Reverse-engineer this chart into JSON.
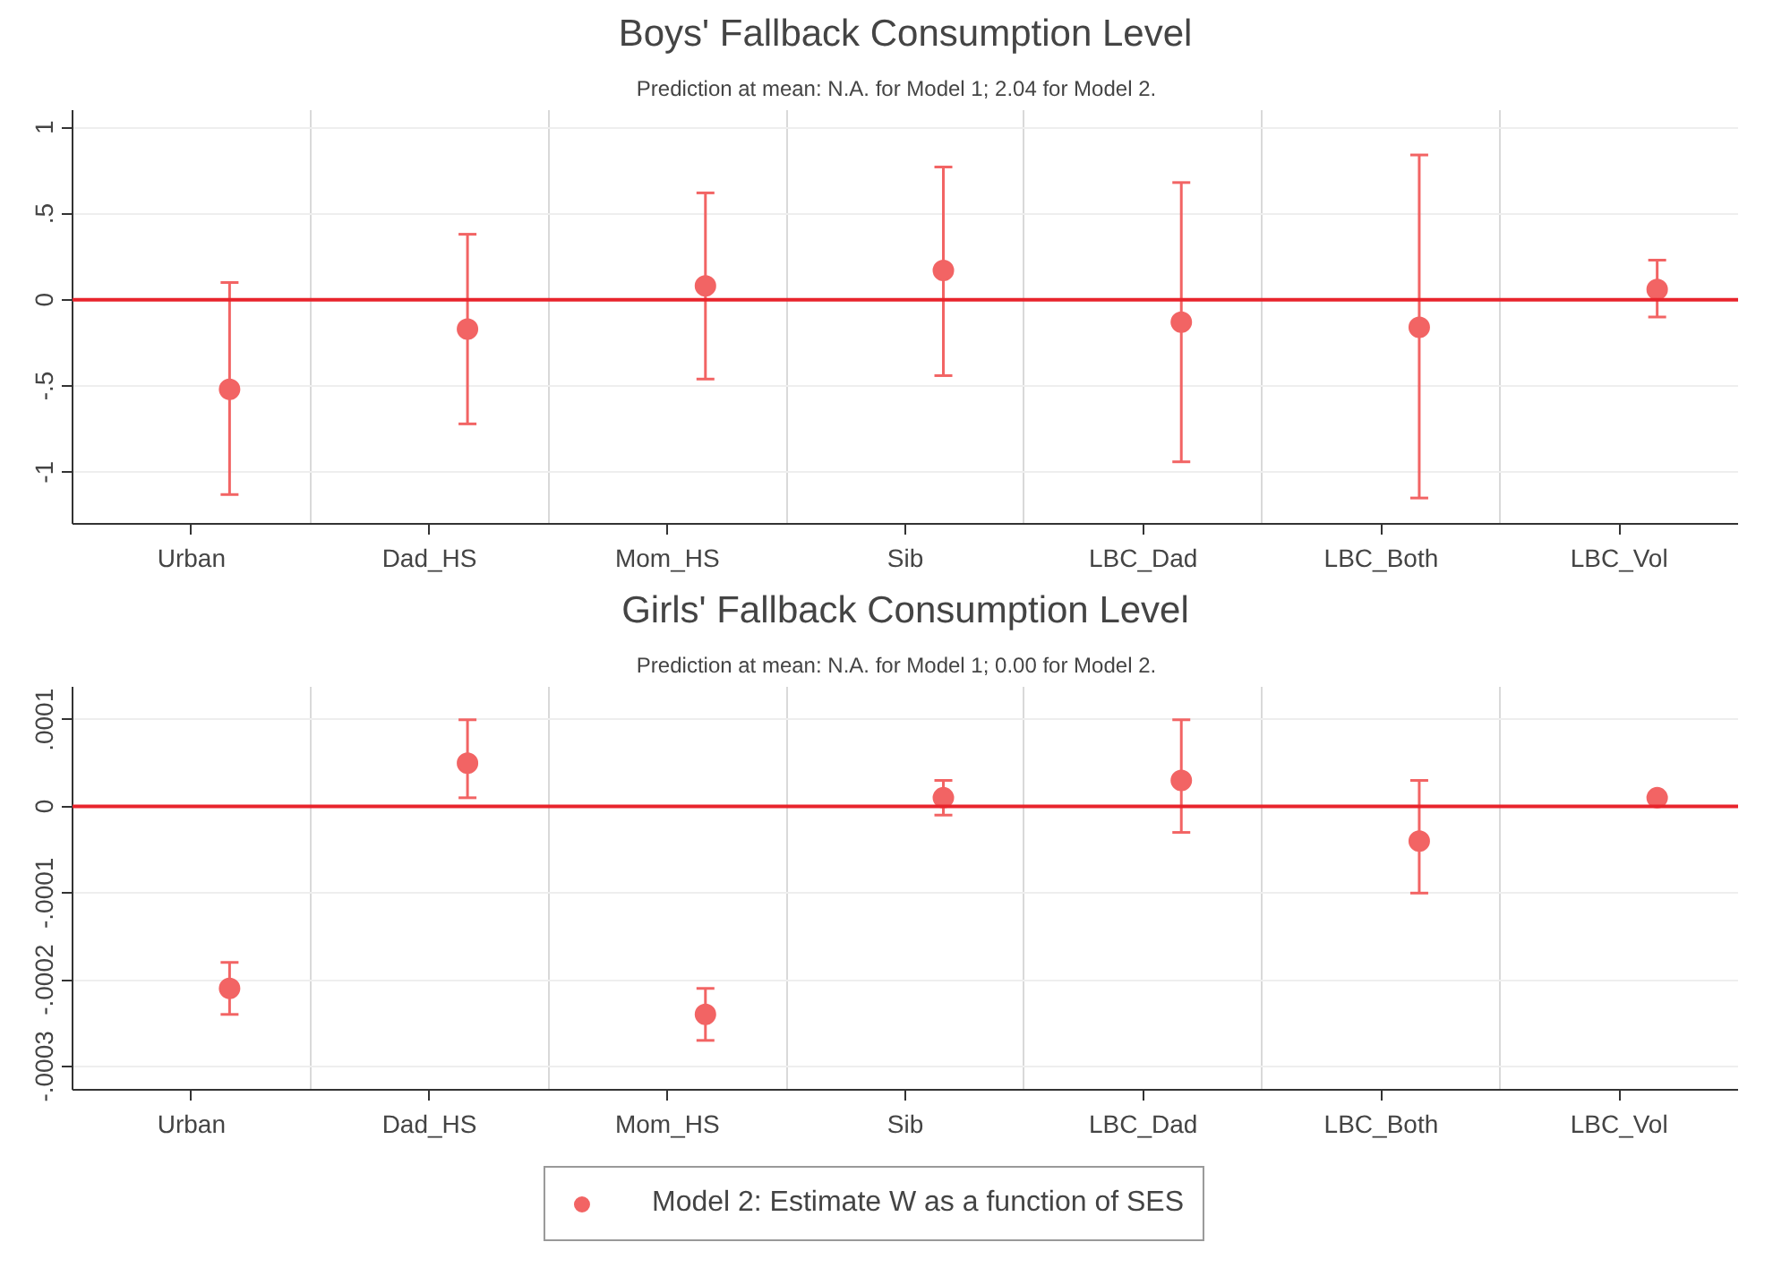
{
  "chart_data": [
    {
      "type": "scatter",
      "title": "Boys' Fallback Consumption Level",
      "subtitle": "Prediction at mean:  N.A.  for Model 1;  2.04 for Model 2.",
      "categories": [
        "Urban",
        "Dad_HS",
        "Mom_HS",
        "Sib",
        "LBC_Dad",
        "LBC_Both",
        "LBC_Vol"
      ],
      "series": [
        {
          "color": "#f26464",
          "values": [
            -0.52,
            -0.17,
            0.08,
            0.17,
            -0.13,
            -0.16,
            0.06
          ],
          "errors": [
            [
              -1.13,
              0.1
            ],
            [
              -0.72,
              0.38
            ],
            [
              -0.46,
              0.62
            ],
            [
              -0.44,
              0.77
            ],
            [
              -0.94,
              0.68
            ],
            [
              -1.15,
              0.84
            ],
            [
              -0.1,
              0.23
            ]
          ]
        }
      ],
      "ylim": [
        -1.3,
        1.1
      ],
      "yticks": [
        {
          "value": -1,
          "label": "-1"
        },
        {
          "value": -0.5,
          "label": "-.5"
        },
        0,
        {
          "value": 0.5,
          "label": ".5"
        },
        1
      ],
      "ref_lines": [
        {
          "axis": "y",
          "value": 0,
          "color": "#e8242c"
        }
      ],
      "grid": true,
      "marker": "circle"
    },
    {
      "type": "scatter",
      "title": "Girls' Fallback Consumption Level",
      "subtitle": "Prediction at mean:  N.A.  for Model 1;  0.00 for Model 2.",
      "categories": [
        "Urban",
        "Dad_HS",
        "Mom_HS",
        "Sib",
        "LBC_Dad",
        "LBC_Both",
        "LBC_Vol"
      ],
      "series": [
        {
          "name": "Model 2: Estimate W as a function of SES",
          "color": "#f26464",
          "values": [
            -0.00021,
            5e-05,
            -0.00024,
            1e-05,
            3e-05,
            -4e-05,
            1e-05
          ],
          "errors": [
            [
              -0.00024,
              -0.00018
            ],
            [
              1e-05,
              0.0001
            ],
            [
              -0.00027,
              -0.00021
            ],
            [
              -1e-05,
              3e-05
            ],
            [
              -3e-05,
              0.0001
            ],
            [
              -0.0001,
              3e-05
            ],
            null
          ]
        }
      ],
      "ylim": [
        -0.000327,
        0.000138
      ],
      "yticks": [
        {
          "value": -0.0003,
          "label": "-.0003"
        },
        {
          "value": -0.0002,
          "label": "-.0002"
        },
        {
          "value": -0.0001,
          "label": "-.0001"
        },
        0,
        {
          "value": 0.0001,
          "label": ".0001"
        }
      ],
      "ref_lines": [
        {
          "axis": "y",
          "value": 0,
          "color": "#e8242c"
        }
      ],
      "grid": true,
      "marker": "circle",
      "legend": "bottom"
    }
  ]
}
